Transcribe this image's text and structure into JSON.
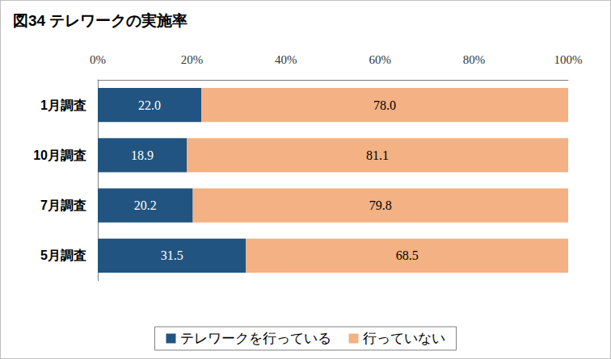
{
  "chart_data": {
    "type": "bar",
    "title": "図34 テレワークの実施率",
    "orientation": "horizontal",
    "stacked": true,
    "data_labels": true,
    "grid": false,
    "legend": "bottom",
    "categories": [
      "1月調査",
      "10月調査",
      "7月調査",
      "5月調査"
    ],
    "series": [
      {
        "name": "テレワークを行っている",
        "color": "#215480",
        "values": [
          22.0,
          18.9,
          20.2,
          31.5
        ],
        "value_labels": [
          "22.0",
          "18.9",
          "20.2",
          "31.5"
        ]
      },
      {
        "name": "行っていない",
        "color": "#f4b183",
        "values": [
          78.0,
          81.1,
          79.8,
          68.5
        ],
        "value_labels": [
          "78.0",
          "81.1",
          "79.8",
          "68.5"
        ]
      }
    ],
    "xlim": [
      0,
      100
    ],
    "xticks": [
      {
        "value": 0,
        "label": "0%"
      },
      {
        "value": 20,
        "label": "20%"
      },
      {
        "value": 40,
        "label": "40%"
      },
      {
        "value": 60,
        "label": "60%"
      },
      {
        "value": 80,
        "label": "80%"
      },
      {
        "value": 100,
        "label": "100%"
      }
    ]
  }
}
